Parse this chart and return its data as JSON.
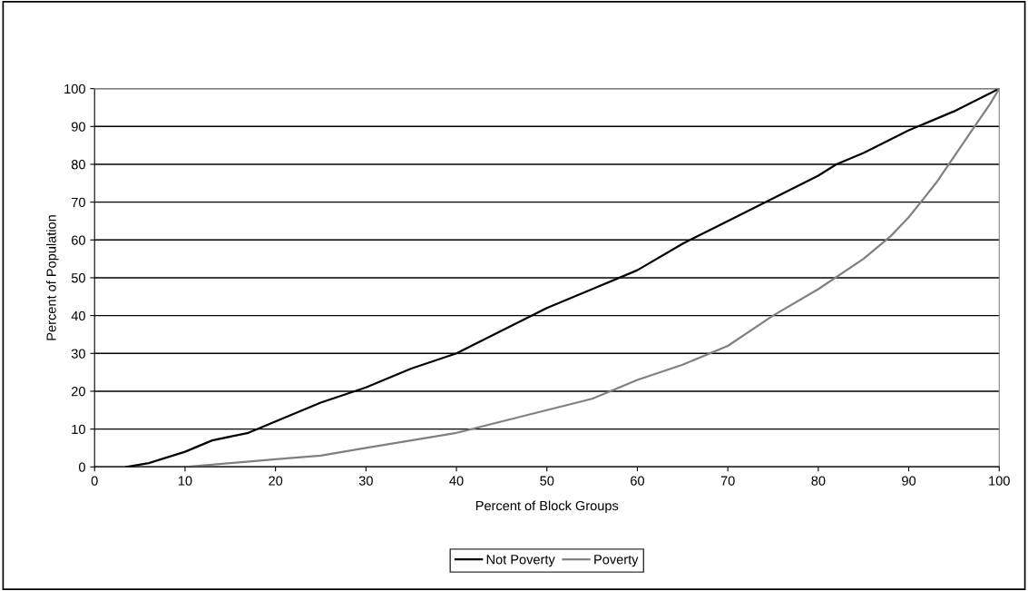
{
  "chart_data": {
    "type": "line",
    "xlabel": "Percent of Block Groups",
    "ylabel": "Percent of Population",
    "xlim": [
      0,
      100
    ],
    "xticks": [
      0,
      10,
      20,
      30,
      40,
      50,
      60,
      70,
      80,
      90,
      100
    ],
    "ylim": [
      0,
      100
    ],
    "yticks": [
      0,
      10,
      20,
      30,
      40,
      50,
      60,
      70,
      80,
      90,
      100
    ],
    "grid": "y",
    "legend": "bottom",
    "marker": "none",
    "line_style": "solid",
    "series": [
      {
        "name": "Not Poverty",
        "color": "#000000",
        "x": [
          3.5,
          6,
          10,
          13,
          17,
          20,
          25,
          30,
          35,
          40,
          45,
          50,
          55,
          60,
          65,
          70,
          75,
          80,
          82,
          85,
          90,
          95,
          100
        ],
        "values": [
          0,
          1,
          4,
          7,
          9,
          12,
          17,
          21,
          26,
          30,
          36,
          42,
          47,
          52,
          59,
          65,
          71,
          77,
          80,
          83,
          89,
          94,
          100
        ]
      },
      {
        "name": "Poverty",
        "color": "#808080",
        "x": [
          10,
          15,
          20,
          25,
          30,
          35,
          40,
          45,
          50,
          55,
          57,
          60,
          65,
          70,
          75,
          80,
          85,
          88,
          90,
          93,
          95,
          97,
          99,
          100
        ],
        "values": [
          0,
          1,
          2,
          3,
          5,
          7,
          9,
          12,
          15,
          18,
          20,
          23,
          27,
          32,
          40,
          47,
          55,
          61,
          66,
          75,
          82,
          89,
          96,
          100
        ]
      }
    ]
  }
}
